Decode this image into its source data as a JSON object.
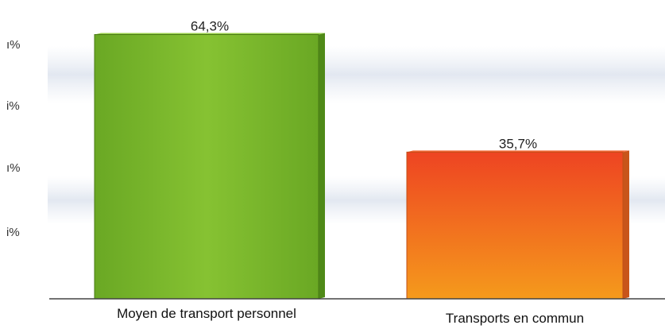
{
  "chart_data": {
    "type": "bar",
    "title": "",
    "xlabel": "",
    "ylabel": "",
    "categories": [
      "Moyen de transport personnel",
      "Transports en commun"
    ],
    "values": [
      64.3,
      35.7
    ],
    "value_labels": [
      "64,3%",
      "35,7%"
    ],
    "y_tick_labels": [
      "ı%",
      "і%",
      "ı%",
      "і%"
    ],
    "ylim": [
      0,
      70
    ],
    "grid": false,
    "legend": "none",
    "colors": {
      "bar_1": "#7ab82d",
      "bar_2_top": "#ee4422",
      "bar_2_bottom": "#f59a1c",
      "axis": "#444444"
    }
  }
}
